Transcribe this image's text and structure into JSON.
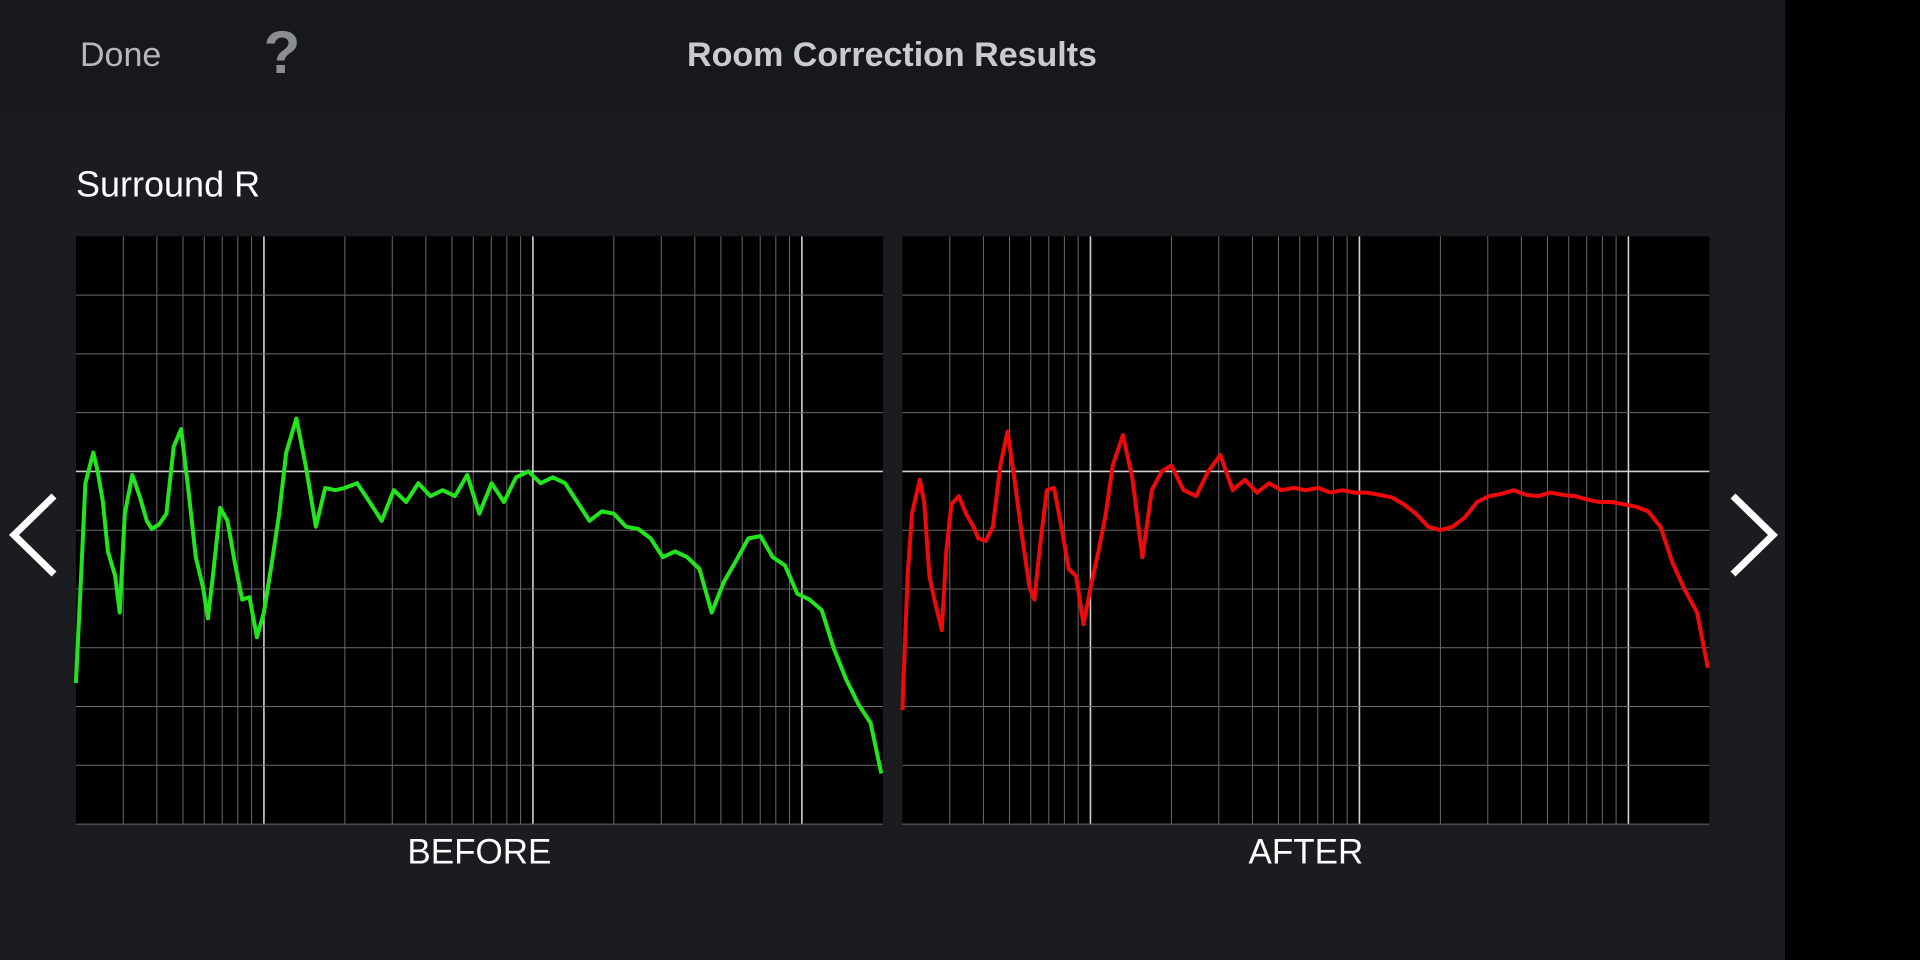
{
  "header": {
    "done": "Done",
    "help": "?",
    "title": "Room Correction Results"
  },
  "channel": "Surround R",
  "chart_data": [
    {
      "type": "line",
      "title": "BEFORE",
      "log_x": true,
      "grid": true,
      "xlim": [
        20,
        20000
      ],
      "ylim": [
        -30,
        20
      ],
      "xticks": [
        30,
        40,
        50,
        60,
        70,
        80,
        90,
        100,
        200,
        300,
        400,
        500,
        600,
        700,
        800,
        900,
        1000,
        2000,
        3000,
        4000,
        5000,
        6000,
        7000,
        8000,
        9000,
        10000
      ],
      "yticks": [
        -25,
        -20,
        -15,
        -10,
        -5,
        0,
        5,
        10,
        15
      ],
      "x": [
        20,
        20.9,
        21.7,
        23.2,
        24.1,
        25.2,
        26.3,
        28,
        29.1,
        30.4,
        32.4,
        34.5,
        36.7,
        38.3,
        40.8,
        43.4,
        46.2,
        49.2,
        52.4,
        55.8,
        59.4,
        61.9,
        64.6,
        68.8,
        73.2,
        78,
        83,
        88.4,
        94.2,
        100,
        107,
        114,
        121,
        132,
        143,
        156,
        169,
        184,
        200,
        222,
        247,
        274,
        304,
        338,
        375,
        416,
        462,
        513,
        570,
        632,
        702,
        780,
        866,
        962,
        1068,
        1186,
        1317,
        1462,
        1623,
        1802,
        2000,
        2221,
        2466,
        2738,
        3040,
        3375,
        3748,
        4161,
        4620,
        5130,
        5696,
        6324,
        7022,
        7797,
        8657,
        9612,
        10672,
        11850,
        13157,
        14609,
        16221,
        18010,
        19730
      ],
      "series": [
        {
          "color": "#22e51e",
          "values": [
            -18,
            -8.9,
            -1,
            1.6,
            0,
            -2.6,
            -6.8,
            -8.9,
            -12,
            -3.6,
            -0.3,
            -2.1,
            -4.2,
            -4.9,
            -4.5,
            -3.6,
            2.1,
            3.6,
            -1.6,
            -7.3,
            -9.9,
            -12.5,
            -8.9,
            -3.1,
            -4.2,
            -7.8,
            -10.9,
            -10.7,
            -14.1,
            -12,
            -7.8,
            -3.6,
            1.6,
            4.5,
            0.5,
            -4.7,
            -1.4,
            -1.6,
            -1.4,
            -1,
            -2.6,
            -4.2,
            -1.6,
            -2.6,
            -1,
            -2.1,
            -1.6,
            -2.1,
            -0.3,
            -3.6,
            -1,
            -2.6,
            -0.5,
            0,
            -1,
            -0.5,
            -1,
            -2.6,
            -4.2,
            -3.4,
            -3.6,
            -4.7,
            -4.9,
            -5.7,
            -7.3,
            -6.8,
            -7.3,
            -8.3,
            -12,
            -9.4,
            -7.6,
            -5.7,
            -5.5,
            -7.3,
            -8,
            -10.4,
            -10.9,
            -11.8,
            -15.1,
            -17.7,
            -19.8,
            -21.4,
            -25.7
          ]
        }
      ]
    },
    {
      "type": "line",
      "title": "AFTER",
      "log_x": true,
      "grid": true,
      "xlim": [
        20,
        20000
      ],
      "ylim": [
        -30,
        20
      ],
      "xticks": [
        30,
        40,
        50,
        60,
        70,
        80,
        90,
        100,
        200,
        300,
        400,
        500,
        600,
        700,
        800,
        900,
        1000,
        2000,
        3000,
        4000,
        5000,
        6000,
        7000,
        8000,
        9000,
        10000
      ],
      "yticks": [
        -25,
        -20,
        -15,
        -10,
        -5,
        0,
        5,
        10,
        15
      ],
      "x": [
        20,
        20.9,
        21.7,
        23.2,
        24.1,
        25.2,
        26.3,
        28,
        29.1,
        30.4,
        32.4,
        34.5,
        36.7,
        38.3,
        40.8,
        43.4,
        46.2,
        49.2,
        52.4,
        55.8,
        59.4,
        61.9,
        64.6,
        68.8,
        73.2,
        78,
        83,
        88.4,
        94.2,
        100,
        107,
        114,
        121,
        132,
        143,
        156,
        169,
        184,
        200,
        222,
        247,
        274,
        304,
        338,
        375,
        416,
        462,
        513,
        570,
        632,
        702,
        780,
        866,
        962,
        1068,
        1186,
        1317,
        1462,
        1623,
        1802,
        2000,
        2221,
        2466,
        2738,
        3040,
        3375,
        3748,
        4161,
        4620,
        5130,
        5696,
        6324,
        7022,
        7797,
        8657,
        9612,
        10672,
        11850,
        13157,
        14609,
        16221,
        18010,
        19730
      ],
      "series": [
        {
          "color": "#ee0a0a",
          "values": [
            -20.3,
            -8.9,
            -3.6,
            -0.7,
            -2.6,
            -8.9,
            -10.9,
            -13.5,
            -6.8,
            -2.8,
            -2.1,
            -3.6,
            -4.7,
            -5.7,
            -5.9,
            -4.7,
            0.5,
            3.4,
            -1,
            -5.7,
            -9.9,
            -10.9,
            -6.8,
            -1.6,
            -1.4,
            -4.7,
            -8.3,
            -8.9,
            -13,
            -9.9,
            -6.8,
            -3.6,
            0.5,
            3.1,
            -0.5,
            -7.3,
            -1.6,
            0,
            0.5,
            -1.6,
            -2.1,
            0,
            1.4,
            -1.6,
            -0.7,
            -1.8,
            -1,
            -1.6,
            -1.4,
            -1.6,
            -1.4,
            -1.8,
            -1.6,
            -1.8,
            -1.8,
            -2,
            -2.2,
            -2.8,
            -3.6,
            -4.7,
            -5,
            -4.7,
            -3.9,
            -2.6,
            -2.1,
            -1.9,
            -1.6,
            -2,
            -2.1,
            -1.8,
            -2,
            -2.1,
            -2.4,
            -2.6,
            -2.6,
            -2.8,
            -3,
            -3.4,
            -4.7,
            -7.8,
            -10.1,
            -12,
            -16.7
          ]
        }
      ]
    }
  ]
}
